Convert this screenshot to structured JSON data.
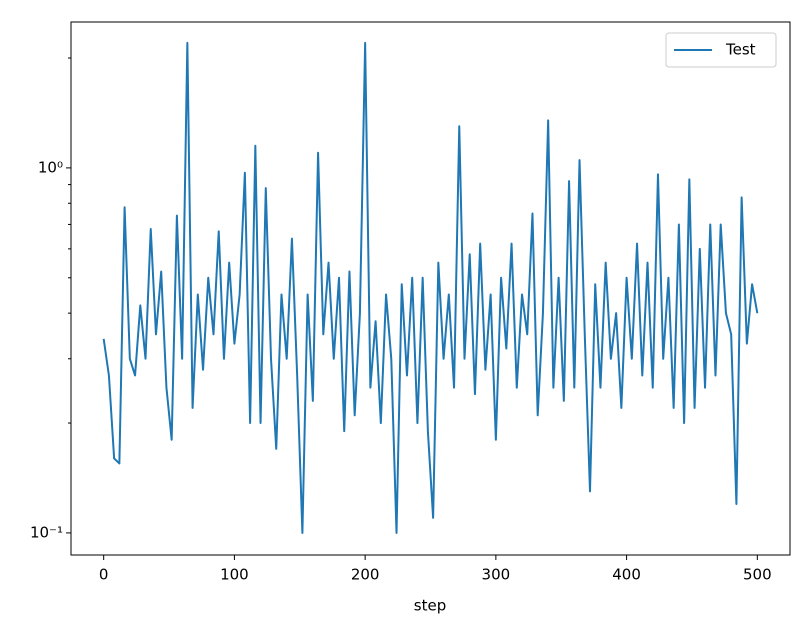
{
  "chart_data": {
    "type": "line",
    "xlabel": "step",
    "log_y": true,
    "legend": "upper right",
    "series": [
      {
        "name": "Test",
        "color": "#1f77b4",
        "x": [
          0,
          4,
          8,
          12,
          16,
          20,
          24,
          28,
          32,
          36,
          40,
          44,
          48,
          52,
          56,
          60,
          64,
          68,
          72,
          76,
          80,
          84,
          88,
          92,
          96,
          100,
          104,
          108,
          112,
          116,
          120,
          124,
          128,
          132,
          136,
          140,
          144,
          148,
          152,
          156,
          160,
          164,
          168,
          172,
          176,
          180,
          184,
          188,
          192,
          196,
          200,
          204,
          208,
          212,
          216,
          220,
          224,
          228,
          232,
          236,
          240,
          244,
          248,
          252,
          256,
          260,
          264,
          268,
          272,
          276,
          280,
          284,
          288,
          292,
          296,
          300,
          304,
          308,
          312,
          316,
          320,
          324,
          328,
          332,
          336,
          340,
          344,
          348,
          352,
          356,
          360,
          364,
          368,
          372,
          376,
          380,
          384,
          388,
          392,
          396,
          400,
          404,
          408,
          412,
          416,
          420,
          424,
          428,
          432,
          436,
          440,
          444,
          448,
          452,
          456,
          460,
          464,
          468,
          472,
          476,
          480,
          484,
          488,
          492,
          496,
          500
        ],
        "values": [
          0.34,
          0.27,
          0.16,
          0.155,
          0.78,
          0.3,
          0.27,
          0.42,
          0.3,
          0.68,
          0.35,
          0.52,
          0.25,
          0.18,
          0.74,
          0.3,
          2.2,
          0.22,
          0.45,
          0.28,
          0.5,
          0.35,
          0.67,
          0.3,
          0.55,
          0.33,
          0.45,
          0.97,
          0.2,
          1.15,
          0.2,
          0.88,
          0.3,
          0.17,
          0.45,
          0.3,
          0.64,
          0.27,
          0.1,
          0.45,
          0.23,
          1.1,
          0.35,
          0.55,
          0.3,
          0.5,
          0.19,
          0.52,
          0.21,
          0.4,
          2.2,
          0.25,
          0.38,
          0.2,
          0.45,
          0.3,
          0.1,
          0.48,
          0.27,
          0.5,
          0.2,
          0.5,
          0.19,
          0.11,
          0.55,
          0.3,
          0.45,
          0.25,
          1.3,
          0.3,
          0.58,
          0.24,
          0.62,
          0.28,
          0.45,
          0.18,
          0.5,
          0.32,
          0.62,
          0.25,
          0.45,
          0.35,
          0.75,
          0.21,
          0.4,
          1.35,
          0.25,
          0.5,
          0.23,
          0.92,
          0.25,
          1.05,
          0.35,
          0.13,
          0.48,
          0.25,
          0.55,
          0.3,
          0.4,
          0.22,
          0.5,
          0.3,
          0.62,
          0.27,
          0.55,
          0.25,
          0.96,
          0.3,
          0.5,
          0.22,
          0.7,
          0.2,
          0.93,
          0.22,
          0.6,
          0.25,
          0.7,
          0.27,
          0.7,
          0.4,
          0.35,
          0.12,
          0.83,
          0.33,
          0.48,
          0.4
        ]
      }
    ],
    "xlim": [
      -25,
      525
    ],
    "ylim": [
      0.087,
      2.51
    ],
    "xticks": [
      0,
      100,
      200,
      300,
      400,
      500
    ],
    "yticks": [
      {
        "value": 0.1,
        "label": "10⁻¹"
      },
      {
        "value": 1,
        "label": "10⁰"
      }
    ],
    "yminorticks": [
      0.2,
      0.3,
      0.4,
      0.5,
      0.6,
      0.7,
      0.8,
      0.9,
      2
    ]
  }
}
